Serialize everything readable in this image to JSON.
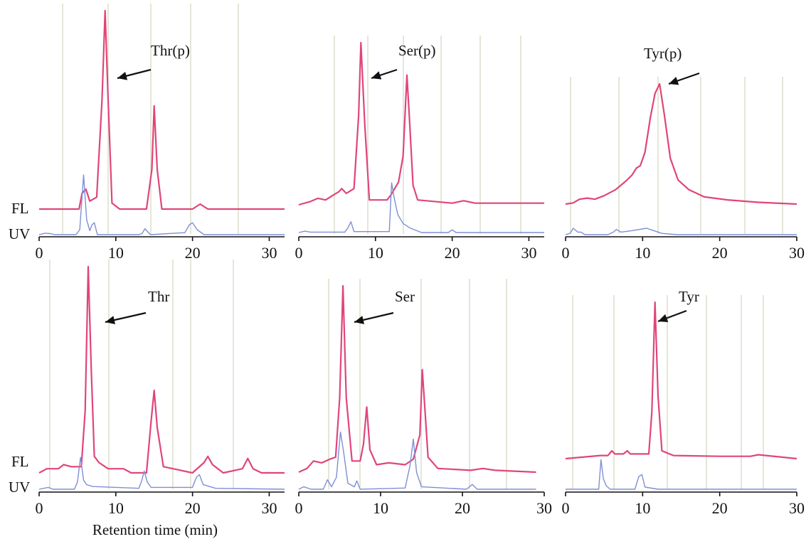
{
  "figure": {
    "xlabel": "Retention time (min)",
    "trace_labels": [
      "FL",
      "UV"
    ],
    "colors": {
      "fl": "#e0457a",
      "uv": "#7e8fd6",
      "grid": "#c9ccb0",
      "axis": "#111111"
    }
  },
  "chart_data": [
    {
      "type": "line",
      "peak_label": "Thr(p)",
      "xlim": [
        0,
        32
      ],
      "xticks": [
        0,
        10,
        20,
        30
      ],
      "series": [
        {
          "name": "FL",
          "x": [
            0,
            5.2,
            5.6,
            6.1,
            6.6,
            7.5,
            8.2,
            8.6,
            9.0,
            9.5,
            10.5,
            14.0,
            14.7,
            15.0,
            15.4,
            16.0,
            20.0,
            21.0,
            22.0,
            32.0
          ],
          "y": [
            0,
            0,
            0.08,
            0.1,
            0.04,
            0.06,
            0.55,
            1.0,
            0.55,
            0.03,
            0.0,
            0.0,
            0.2,
            0.52,
            0.2,
            0.0,
            0.0,
            0.025,
            0.0,
            0.0
          ]
        },
        {
          "name": "UV",
          "x": [
            0,
            0.8,
            1.5,
            2.0,
            4.8,
            5.3,
            5.8,
            6.2,
            6.6,
            6.9,
            7.2,
            7.6,
            13.0,
            13.4,
            13.8,
            14.5,
            19.0,
            19.6,
            20.0,
            20.6,
            21.5,
            32.0
          ],
          "y": [
            0,
            0.015,
            0.01,
            0,
            0.0,
            0.05,
            0.6,
            0.15,
            0.04,
            0.1,
            0.12,
            0.0,
            0.0,
            0.01,
            0.06,
            0.0,
            0.02,
            0.1,
            0.12,
            0.05,
            0.0,
            0.0
          ]
        }
      ]
    },
    {
      "type": "line",
      "peak_label": "Ser(p)",
      "xlim": [
        0,
        32
      ],
      "xticks": [
        0,
        10,
        20,
        30
      ],
      "series": [
        {
          "name": "FL",
          "x": [
            0,
            1.5,
            2.5,
            3.5,
            4.5,
            5.2,
            5.6,
            6.2,
            7.2,
            7.8,
            8.1,
            8.6,
            9.2,
            11.5,
            12.0,
            13.0,
            13.6,
            14.1,
            14.4,
            14.9,
            15.5,
            20.0,
            21.5,
            23.0,
            32.0
          ],
          "y": [
            0,
            0.02,
            0.04,
            0.03,
            0.06,
            0.08,
            0.1,
            0.07,
            0.1,
            0.55,
            1.0,
            0.5,
            0.03,
            0.03,
            0.06,
            0.14,
            0.3,
            0.8,
            0.55,
            0.12,
            0.03,
            0.01,
            0.025,
            0.01,
            0.01
          ]
        },
        {
          "name": "UV",
          "x": [
            0,
            0.8,
            1.5,
            6.0,
            6.4,
            6.8,
            7.2,
            11.8,
            12.1,
            12.4,
            12.9,
            13.6,
            14.5,
            16.0,
            19.5,
            20.0,
            20.5,
            32.0
          ],
          "y": [
            0,
            0.015,
            0.005,
            0.005,
            0.05,
            0.12,
            0.01,
            0.01,
            0.55,
            0.4,
            0.2,
            0.1,
            0.05,
            0.0,
            0.0,
            0.03,
            0.0,
            0.0
          ]
        }
      ]
    },
    {
      "type": "line",
      "peak_label": "Tyr(p)",
      "xlim": [
        0,
        30
      ],
      "xticks": [
        0,
        10,
        20,
        30
      ],
      "series": [
        {
          "name": "FL",
          "x": [
            0,
            1.0,
            1.8,
            2.8,
            3.8,
            5.0,
            6.5,
            7.8,
            8.6,
            9.2,
            9.7,
            10.3,
            11.0,
            11.6,
            12.2,
            12.8,
            13.6,
            14.6,
            16.0,
            18.0,
            21.0,
            25.0,
            30.0
          ],
          "y": [
            0,
            0.01,
            0.04,
            0.05,
            0.04,
            0.07,
            0.12,
            0.19,
            0.24,
            0.3,
            0.32,
            0.43,
            0.72,
            0.92,
            1.0,
            0.75,
            0.38,
            0.2,
            0.12,
            0.06,
            0.035,
            0.015,
            0.0
          ]
        },
        {
          "name": "UV",
          "x": [
            0,
            0.6,
            1.0,
            1.6,
            2.0,
            2.5,
            5.5,
            6.2,
            6.6,
            7.2,
            8.5,
            10.5,
            11.5,
            12.5,
            14.5,
            20.0,
            30.0
          ],
          "y": [
            0,
            0.01,
            0.05,
            0.02,
            0.02,
            0.0,
            0.0,
            0.02,
            0.04,
            0.02,
            0.03,
            0.05,
            0.03,
            0.01,
            0.0,
            0.0,
            0.0
          ]
        }
      ]
    },
    {
      "type": "line",
      "peak_label": "Thr",
      "xlim": [
        0,
        32
      ],
      "xticks": [
        0,
        10,
        20,
        30
      ],
      "series": [
        {
          "name": "FL",
          "x": [
            0,
            1.0,
            2.5,
            3.2,
            4.2,
            5.5,
            6.0,
            6.4,
            6.8,
            7.2,
            7.8,
            9.0,
            11.0,
            12.0,
            14.0,
            14.6,
            15.0,
            15.4,
            16.2,
            20.0,
            21.5,
            22.0,
            22.6,
            24.0,
            26.5,
            27.2,
            27.9,
            29.0,
            32.0
          ],
          "y": [
            0,
            0.02,
            0.02,
            0.04,
            0.03,
            0.03,
            0.3,
            1.0,
            0.5,
            0.08,
            0.05,
            0.02,
            0.02,
            0.0,
            0.0,
            0.25,
            0.4,
            0.22,
            0.03,
            0.0,
            0.05,
            0.08,
            0.04,
            0.0,
            0.02,
            0.07,
            0.02,
            0.0,
            0.0
          ]
        },
        {
          "name": "UV",
          "x": [
            0,
            1.2,
            1.8,
            4.6,
            5.0,
            5.4,
            5.8,
            6.2,
            7.0,
            13.0,
            13.4,
            13.7,
            14.1,
            14.6,
            20.0,
            20.5,
            20.9,
            21.4,
            23.0,
            32.0
          ],
          "y": [
            0,
            0.02,
            0.0,
            0.0,
            0.08,
            0.35,
            0.1,
            0.05,
            0.03,
            0.01,
            0.1,
            0.2,
            0.08,
            0.02,
            0.02,
            0.13,
            0.16,
            0.05,
            0.01,
            0.0
          ]
        }
      ]
    },
    {
      "type": "line",
      "peak_label": "Ser",
      "xlim": [
        0,
        30
      ],
      "xticks": [
        0,
        10,
        20,
        30
      ],
      "series": [
        {
          "name": "FL",
          "x": [
            0,
            1.0,
            1.8,
            2.8,
            3.8,
            4.5,
            5.0,
            5.4,
            5.8,
            6.5,
            7.5,
            7.9,
            8.3,
            8.7,
            9.5,
            11.0,
            13.0,
            14.0,
            14.8,
            15.1,
            15.4,
            15.8,
            17.0,
            21.0,
            22.5,
            24.0,
            29.0
          ],
          "y": [
            0,
            0.02,
            0.06,
            0.05,
            0.07,
            0.08,
            0.4,
            1.0,
            0.4,
            0.06,
            0.06,
            0.15,
            0.35,
            0.12,
            0.04,
            0.05,
            0.04,
            0.07,
            0.2,
            0.55,
            0.35,
            0.08,
            0.02,
            0.01,
            0.02,
            0.01,
            0.0
          ]
        },
        {
          "name": "UV",
          "x": [
            0,
            0.6,
            1.5,
            3.0,
            3.5,
            4.0,
            4.6,
            5.1,
            5.5,
            6.0,
            6.8,
            7.1,
            7.5,
            13.0,
            13.6,
            14.0,
            14.4,
            15.0,
            20.5,
            21.2,
            21.8,
            29.0
          ],
          "y": [
            0,
            0.02,
            0.0,
            0.0,
            0.08,
            0.02,
            0.1,
            0.48,
            0.3,
            0.05,
            0.02,
            0.07,
            0.0,
            0.01,
            0.2,
            0.42,
            0.14,
            0.02,
            0.0,
            0.04,
            0.0,
            0.0
          ]
        }
      ]
    },
    {
      "type": "line",
      "peak_label": "Tyr",
      "xlim": [
        0,
        30
      ],
      "xticks": [
        0,
        10,
        20,
        30
      ],
      "series": [
        {
          "name": "FL",
          "x": [
            0,
            4.5,
            5.5,
            6.0,
            6.4,
            7.5,
            8.0,
            8.4,
            10.8,
            11.2,
            11.6,
            12.0,
            12.5,
            13.0,
            14.0,
            20.0,
            24.0,
            25.0,
            30.0
          ],
          "y": [
            0,
            0.02,
            0.02,
            0.05,
            0.03,
            0.03,
            0.05,
            0.03,
            0.03,
            0.3,
            1.0,
            0.4,
            0.05,
            0.04,
            0.02,
            0.015,
            0.015,
            0.025,
            0.0
          ]
        },
        {
          "name": "UV",
          "x": [
            0,
            4.3,
            4.6,
            4.9,
            5.3,
            5.8,
            9.0,
            9.5,
            9.9,
            10.3,
            12.0,
            30.0
          ],
          "y": [
            0,
            0.0,
            0.28,
            0.1,
            0.03,
            0.0,
            0.0,
            0.12,
            0.14,
            0.02,
            0.0,
            0.0
          ]
        }
      ]
    }
  ]
}
